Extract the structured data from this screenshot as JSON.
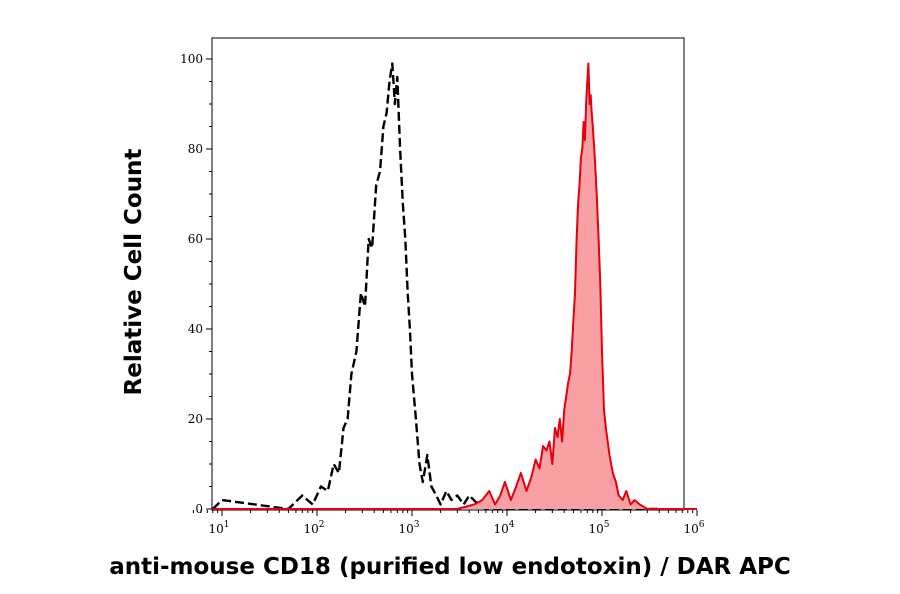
{
  "chart_data": {
    "type": "area",
    "title": "",
    "xlabel": "anti-mouse CD18 (purified low endotoxin) / DAR APC",
    "ylabel": "Relative Cell Count",
    "xscale": "log",
    "xlim": [
      5,
      1000000
    ],
    "ylim": [
      0,
      100
    ],
    "x_ticks": [
      {
        "base": "10",
        "exp": "1",
        "value": 10
      },
      {
        "base": "10",
        "exp": "2",
        "value": 100
      },
      {
        "base": "10",
        "exp": "3",
        "value": 1000
      },
      {
        "base": "10",
        "exp": "4",
        "value": 10000
      },
      {
        "base": "10",
        "exp": "5",
        "value": 100000
      },
      {
        "base": "10",
        "exp": "6",
        "value": 1000000
      }
    ],
    "y_ticks": [
      "0",
      "20",
      "40",
      "60",
      "80",
      "100"
    ],
    "grid": false,
    "series": [
      {
        "style": "black dashed line (unfilled)",
        "color": "#000000",
        "x": [
          8,
          10,
          50,
          70,
          90,
          110,
          130,
          150,
          170,
          190,
          210,
          230,
          260,
          290,
          320,
          350,
          380,
          420,
          460,
          500,
          540,
          580,
          620,
          660,
          700,
          750,
          800,
          850,
          900,
          950,
          1000,
          1100,
          1200,
          1300,
          1450,
          1600,
          1800,
          2000,
          2300,
          2600,
          3000,
          3500,
          4000,
          5000,
          6000,
          8000,
          100000,
          400000
        ],
        "y": [
          0,
          2,
          0,
          3,
          1,
          5,
          4,
          10,
          8,
          18,
          20,
          30,
          35,
          48,
          45,
          60,
          58,
          72,
          75,
          85,
          88,
          95,
          99,
          90,
          96,
          80,
          68,
          60,
          48,
          40,
          30,
          20,
          10,
          6,
          12,
          5,
          3,
          1,
          4,
          2,
          3,
          1,
          3,
          1,
          0,
          0,
          0,
          0
        ]
      },
      {
        "style": "red line with light red fill",
        "color": "#e3000f",
        "fill": "#f8a0a4",
        "x": [
          8,
          3000,
          4500,
          5500,
          6500,
          7500,
          8500,
          9500,
          11000,
          12500,
          14000,
          16000,
          18000,
          20000,
          22000,
          24000,
          26000,
          28000,
          30000,
          32000,
          34000,
          36000,
          38000,
          40000,
          42000,
          44000,
          46000,
          48000,
          50000,
          52000,
          54000,
          56000,
          58000,
          60000,
          62000,
          64000,
          66000,
          68000,
          70000,
          72000,
          74000,
          76000,
          78000,
          80000,
          84000,
          88000,
          92000,
          96000,
          100000,
          105000,
          110000,
          120000,
          130000,
          140000,
          150000,
          165000,
          180000,
          200000,
          220000,
          250000,
          300000,
          1000000
        ],
        "y": [
          0,
          0,
          1,
          2,
          4,
          1,
          3,
          6,
          2,
          5,
          8,
          4,
          7,
          11,
          9,
          14,
          13,
          15,
          10,
          18,
          16,
          20,
          15,
          22,
          25,
          28,
          30,
          35,
          42,
          48,
          60,
          68,
          72,
          78,
          80,
          86,
          82,
          90,
          95,
          99,
          90,
          92,
          88,
          85,
          78,
          70,
          60,
          50,
          35,
          22,
          18,
          12,
          8,
          6,
          3,
          2,
          4,
          1,
          2,
          1,
          0,
          0
        ]
      }
    ]
  }
}
